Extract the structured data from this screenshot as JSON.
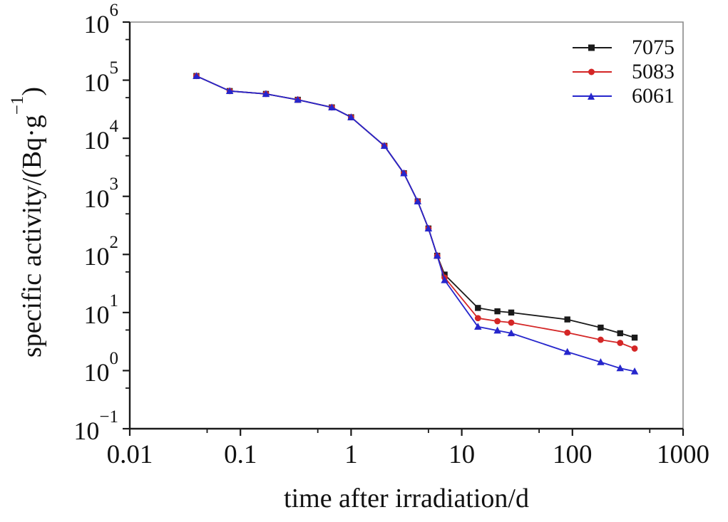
{
  "chart_data": {
    "type": "line",
    "title": "",
    "xlabel": "time after irradiation/d",
    "ylabel": "specific activity/(Bq·g⁻¹)",
    "ylabel_prefix": "specific activity/(Bq·g",
    "ylabel_sup": "−1",
    "ylabel_suffix": ")",
    "x_scale": "log",
    "y_scale": "log",
    "xlim": [
      0.01,
      1000
    ],
    "ylim": [
      0.1,
      1000000
    ],
    "grid": false,
    "legend_position": "top-right-inside",
    "frame_color": "#1a1a1a",
    "frame_secondary_color": "#8a8a8a",
    "x_ticks": {
      "values": [
        0.01,
        0.1,
        1,
        10,
        100,
        1000
      ],
      "labels": [
        "0.01",
        "0.1",
        "1",
        "10",
        "100",
        "1000"
      ],
      "minor": [
        0.05,
        0.5,
        5,
        50,
        500
      ]
    },
    "y_ticks": {
      "base": "10",
      "values": [
        1000000,
        100000,
        10000,
        1000,
        100,
        10,
        1,
        0.1
      ],
      "exponents": [
        "6",
        "5",
        "4",
        "3",
        "2",
        "1",
        "0",
        "−1"
      ],
      "minor": [
        500000,
        50000,
        5000,
        500,
        50,
        5,
        0.5
      ]
    },
    "x": [
      0.04,
      0.08,
      0.17,
      0.33,
      0.67,
      1,
      2,
      3,
      4,
      5,
      6,
      7,
      14,
      21,
      28,
      90,
      180,
      270,
      365
    ],
    "series": [
      {
        "name": "7075",
        "color": "#1a1a1a",
        "marker": "square",
        "values": [
          118000,
          65000,
          58000,
          46000,
          34000,
          23000,
          7400,
          2500,
          820,
          280,
          95,
          45,
          12,
          10.5,
          10,
          7.6,
          5.5,
          4.4,
          3.7
        ]
      },
      {
        "name": "5083",
        "color": "#d42626",
        "marker": "circle",
        "values": [
          118000,
          65000,
          58000,
          46000,
          34000,
          23000,
          7400,
          2500,
          820,
          280,
          95,
          40,
          8,
          7.1,
          6.7,
          4.5,
          3.4,
          3.0,
          2.4
        ]
      },
      {
        "name": "6061",
        "color": "#2626cc",
        "marker": "triangle",
        "values": [
          118000,
          65000,
          58000,
          46000,
          34000,
          23000,
          7400,
          2500,
          820,
          280,
          95,
          36,
          5.7,
          4.9,
          4.4,
          2.1,
          1.4,
          1.1,
          0.97
        ]
      }
    ]
  }
}
